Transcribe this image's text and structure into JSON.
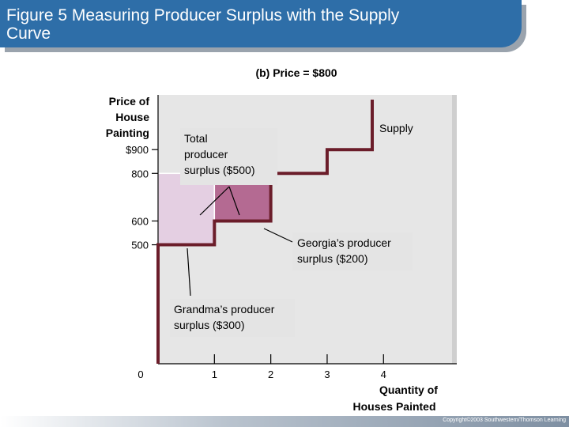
{
  "slide": {
    "title_line1": "Figure 5 Measuring Producer Surplus with the Supply",
    "title_line2": "Curve",
    "copyright": "Copyright©2003 Southwestern/Thomson Learning"
  },
  "colors": {
    "title_bar": "#2e6ea8",
    "plot_background": "#e6e6e6",
    "supply_line": "#6b1d2a",
    "grandma_surplus": "#e4cfe2",
    "georgia_surplus": "#b46a92",
    "label_box": "#e4e4e4"
  },
  "chart_data": {
    "type": "line",
    "panel_title": "(b) Price = $800",
    "ylabel_lines": [
      "Price of",
      "House",
      "Painting"
    ],
    "xlabel_lines": [
      "Quantity of",
      "Houses Painted"
    ],
    "xlim": [
      0,
      5.3
    ],
    "ylim": [
      0,
      1130
    ],
    "x_ticks": [
      {
        "value": 0,
        "label": "0"
      },
      {
        "value": 1,
        "label": "1"
      },
      {
        "value": 2,
        "label": "2"
      },
      {
        "value": 3,
        "label": "3"
      },
      {
        "value": 4,
        "label": "4"
      }
    ],
    "y_ticks": [
      {
        "value": 500,
        "label": "500"
      },
      {
        "value": 600,
        "label": "600"
      },
      {
        "value": 800,
        "label": "800"
      },
      {
        "value": 900,
        "label": "$900"
      }
    ],
    "price": 800,
    "series": [
      {
        "name": "Supply",
        "x": [
          0,
          0,
          1,
          1,
          2,
          2,
          3,
          3,
          3.8,
          3.8
        ],
        "y": [
          0,
          500,
          500,
          600,
          600,
          800,
          800,
          900,
          900,
          1110
        ]
      }
    ],
    "surplus_areas": [
      {
        "key": "grandma",
        "x0": 0,
        "x1": 1,
        "y0": 500,
        "y1": 800
      },
      {
        "key": "georgia",
        "x0": 1,
        "x1": 2,
        "y0": 600,
        "y1": 800
      }
    ],
    "annotations": {
      "total": [
        "Total",
        "producer",
        "surplus ($500)"
      ],
      "georgia": [
        "Georgia’s producer",
        "surplus ($200)"
      ],
      "grandma": [
        "Grandma’s producer",
        "surplus ($300)"
      ]
    }
  }
}
